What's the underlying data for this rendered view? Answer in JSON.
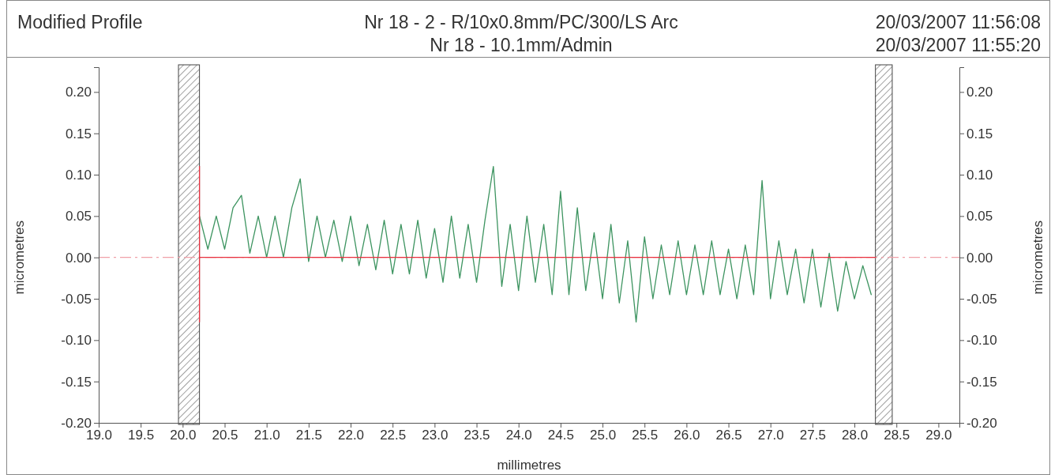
{
  "chart_data": {
    "type": "line",
    "title": "Modified Profile",
    "annotations": [
      "Nr 18 - 2 - R/10x0.8mm/PC/300/LS Arc",
      "20/03/2007 11:56:08",
      "Nr 18 - 10.1mm/Admin",
      "20/03/2007 11:55:20"
    ],
    "xlabel": "millimetres",
    "ylabel": "micrometres",
    "y2label": "micrometres",
    "xlim": [
      19.0,
      29.25
    ],
    "ylim": [
      -0.2,
      0.23
    ],
    "y2lim": [
      -0.2,
      0.23
    ],
    "xticks": [
      {
        "value": 19,
        "label": "19.0"
      },
      {
        "value": 19.5,
        "label": "19.5"
      },
      {
        "value": 20,
        "label": "20.0"
      },
      {
        "value": 20.5,
        "label": "20.5"
      },
      {
        "value": 21,
        "label": "21.0"
      },
      {
        "value": 21.5,
        "label": "21.5"
      },
      {
        "value": 22,
        "label": "22.0"
      },
      {
        "value": 22.5,
        "label": "22.5"
      },
      {
        "value": 23,
        "label": "23.0"
      },
      {
        "value": 23.5,
        "label": "23.5"
      },
      {
        "value": 24,
        "label": "24.0"
      },
      {
        "value": 24.5,
        "label": "24.5"
      },
      {
        "value": 25,
        "label": "25.0"
      },
      {
        "value": 25.5,
        "label": "25.5"
      },
      {
        "value": 26,
        "label": "26.0"
      },
      {
        "value": 26.5,
        "label": "26.5"
      },
      {
        "value": 27,
        "label": "27.0"
      },
      {
        "value": 27.5,
        "label": "27.5"
      },
      {
        "value": 28,
        "label": "28.0"
      },
      {
        "value": 28.5,
        "label": "28.5"
      },
      {
        "value": 29,
        "label": "29.0"
      }
    ],
    "yticks": [
      {
        "value": 0.2,
        "label": "0.20"
      },
      {
        "value": 0.15,
        "label": "0.15"
      },
      {
        "value": 0.1,
        "label": "0.10"
      },
      {
        "value": 0.05,
        "label": "0.05"
      },
      {
        "value": 0,
        "label": "0.00"
      },
      {
        "value": -0.05,
        "label": "-0.05"
      },
      {
        "value": -0.1,
        "label": "-0.10"
      },
      {
        "value": -0.15,
        "label": "-0.15"
      },
      {
        "value": -0.2,
        "label": "-0.20"
      }
    ],
    "y2ticks": [
      {
        "value": 0.2,
        "label": "0.20"
      },
      {
        "value": 0.15,
        "label": "0.15"
      },
      {
        "value": 0.1,
        "label": "0.10"
      },
      {
        "value": 0.05,
        "label": "0.05"
      },
      {
        "value": 0,
        "label": "0.00"
      },
      {
        "value": -0.05,
        "label": "-0.05"
      },
      {
        "value": -0.1,
        "label": "-0.10"
      },
      {
        "value": -0.15,
        "label": "-0.15"
      },
      {
        "value": -0.2,
        "label": "-0.20"
      }
    ],
    "grid": false,
    "bands": [
      {
        "axis": "x",
        "from": 19.95,
        "to": 20.2
      },
      {
        "axis": "x",
        "from": 28.25,
        "to": 28.45
      }
    ],
    "ref_lines": [
      {
        "axis": "y",
        "value": 0,
        "color": "#f0a0a8",
        "line_style": "dashed"
      }
    ],
    "series": [
      {
        "color": "#3d9460",
        "x": [
          20.2,
          20.3,
          20.4,
          20.5,
          20.6,
          20.7,
          20.8,
          20.9,
          21.0,
          21.1,
          21.2,
          21.3,
          21.4,
          21.5,
          21.6,
          21.7,
          21.8,
          21.9,
          22.0,
          22.1,
          22.2,
          22.3,
          22.4,
          22.5,
          22.6,
          22.7,
          22.8,
          22.9,
          23.0,
          23.1,
          23.2,
          23.3,
          23.4,
          23.5,
          23.6,
          23.7,
          23.8,
          23.9,
          24.0,
          24.1,
          24.2,
          24.3,
          24.4,
          24.5,
          24.6,
          24.7,
          24.8,
          24.9,
          25.0,
          25.1,
          25.2,
          25.3,
          25.4,
          25.5,
          25.6,
          25.7,
          25.8,
          25.9,
          26.0,
          26.1,
          26.2,
          26.3,
          26.4,
          26.5,
          26.6,
          26.7,
          26.8,
          26.9,
          27.0,
          27.1,
          27.2,
          27.3,
          27.4,
          27.5,
          27.6,
          27.7,
          27.8,
          27.9,
          28.0,
          28.1,
          28.2
        ],
        "values": [
          0.05,
          0.01,
          0.05,
          0.01,
          0.06,
          0.075,
          0.005,
          0.05,
          0.0,
          0.05,
          0.0,
          0.06,
          0.095,
          -0.005,
          0.05,
          0.0,
          0.045,
          -0.005,
          0.05,
          -0.01,
          0.04,
          -0.015,
          0.045,
          -0.02,
          0.04,
          -0.02,
          0.045,
          -0.025,
          0.035,
          -0.03,
          0.05,
          -0.025,
          0.04,
          -0.03,
          0.045,
          0.11,
          -0.035,
          0.04,
          -0.04,
          0.05,
          -0.03,
          0.04,
          -0.045,
          0.08,
          -0.045,
          0.06,
          -0.04,
          0.03,
          -0.05,
          0.04,
          -0.055,
          0.02,
          -0.078,
          0.025,
          -0.05,
          0.015,
          -0.045,
          0.02,
          -0.045,
          0.015,
          -0.045,
          0.02,
          -0.045,
          0.01,
          -0.05,
          0.015,
          -0.045,
          0.093,
          -0.05,
          0.02,
          -0.045,
          0.01,
          -0.055,
          0.01,
          -0.06,
          0.005,
          -0.065,
          -0.005,
          -0.05,
          -0.01,
          -0.045
        ]
      },
      {
        "color": "#e8313f",
        "x": [
          20.2,
          28.25
        ],
        "values": [
          0,
          0
        ]
      },
      {
        "color": "#e8313f",
        "x": [
          20.2,
          20.2
        ],
        "values": [
          -0.078,
          0.11
        ]
      }
    ]
  }
}
